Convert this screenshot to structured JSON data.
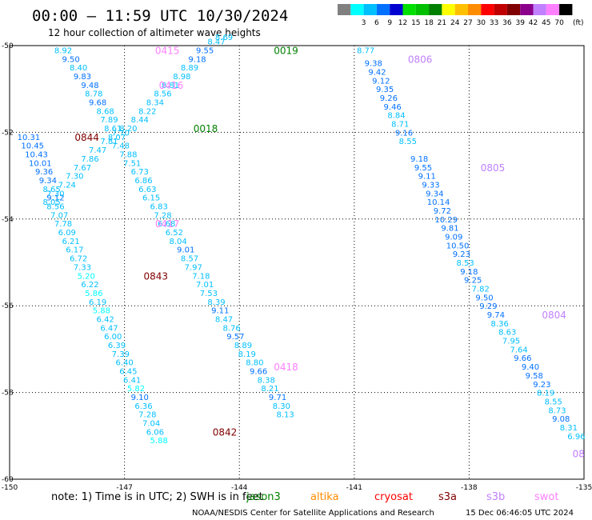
{
  "header": {
    "title": "00:00 — 11:59 UTC 10/30/2024",
    "subtitle": "12 hour collection of altimeter wave heights"
  },
  "legend": {
    "unit": "(ft)",
    "bins": [
      {
        "label": "",
        "color": "#808080"
      },
      {
        "label": "3",
        "color": "#00ffff"
      },
      {
        "label": "6",
        "color": "#00bfff"
      },
      {
        "label": "9",
        "color": "#0070ff"
      },
      {
        "label": "12",
        "color": "#0000d0"
      },
      {
        "label": "15",
        "color": "#00e000"
      },
      {
        "label": "18",
        "color": "#00c000"
      },
      {
        "label": "21",
        "color": "#008000"
      },
      {
        "label": "24",
        "color": "#ffff00"
      },
      {
        "label": "27",
        "color": "#ffc000"
      },
      {
        "label": "30",
        "color": "#ff8c00"
      },
      {
        "label": "33",
        "color": "#ff0000"
      },
      {
        "label": "36",
        "color": "#c00000"
      },
      {
        "label": "39",
        "color": "#800000"
      },
      {
        "label": "42",
        "color": "#8b008b"
      },
      {
        "label": "45",
        "color": "#c080ff"
      },
      {
        "label": "70",
        "color": "#ff80ff"
      },
      {
        "label": "",
        "color": "#000000"
      }
    ]
  },
  "axes": {
    "lon_labels": [
      "-150",
      "-147",
      "-144",
      "-141",
      "-138",
      "-135"
    ],
    "lat_labels": [
      "-50",
      "-52",
      "-54",
      "-56",
      "-58",
      "-60"
    ]
  },
  "time_labels": [
    {
      "text": "0415",
      "lon": -146.2,
      "lat": -50.1,
      "color": "#ff80ff"
    },
    {
      "text": "0416",
      "lon": -146.1,
      "lat": -50.9,
      "color": "#ff80ff"
    },
    {
      "text": "0844",
      "lon": -148.3,
      "lat": -52.1,
      "color": "#800000"
    },
    {
      "text": "0843",
      "lon": -146.5,
      "lat": -55.3,
      "color": "#800000"
    },
    {
      "text": "0417",
      "lon": -146.2,
      "lat": -54.1,
      "color": "#ff80ff"
    },
    {
      "text": "0418",
      "lon": -143.1,
      "lat": -57.4,
      "color": "#ff80ff"
    },
    {
      "text": "0842",
      "lon": -144.7,
      "lat": -58.9,
      "color": "#800000"
    },
    {
      "text": "0019",
      "lon": -143.1,
      "lat": -50.1,
      "color": "#008000"
    },
    {
      "text": "0018",
      "lon": -145.2,
      "lat": -51.9,
      "color": "#008000"
    },
    {
      "text": "0806",
      "lon": -139.6,
      "lat": -50.3,
      "color": "#c080ff"
    },
    {
      "text": "0805",
      "lon": -137.7,
      "lat": -52.8,
      "color": "#c080ff"
    },
    {
      "text": "0804",
      "lon": -136.1,
      "lat": -56.2,
      "color": "#c080ff"
    },
    {
      "text": "08",
      "lon": -135.3,
      "lat": -59.4,
      "color": "#c080ff"
    }
  ],
  "swh_tracks": [
    {
      "name": "0415-0417",
      "points": [
        {
          "lon": -148.6,
          "lat": -50.1,
          "v": "8.92"
        },
        {
          "lon": -148.4,
          "lat": -50.3,
          "v": "9.50"
        },
        {
          "lon": -148.2,
          "lat": -50.5,
          "v": "8.40"
        },
        {
          "lon": -148.1,
          "lat": -50.7,
          "v": "9.83"
        },
        {
          "lon": -147.9,
          "lat": -50.9,
          "v": "9.48"
        },
        {
          "lon": -147.8,
          "lat": -51.1,
          "v": "8.78"
        },
        {
          "lon": -147.7,
          "lat": -51.3,
          "v": "9.68"
        },
        {
          "lon": -147.5,
          "lat": -51.5,
          "v": "8.68"
        },
        {
          "lon": -147.4,
          "lat": -51.7,
          "v": "7.89"
        },
        {
          "lon": -147.3,
          "lat": -51.9,
          "v": "8.61"
        },
        {
          "lon": -147.2,
          "lat": -52.1,
          "v": "8.07"
        },
        {
          "lon": -147.1,
          "lat": -52.3,
          "v": "7.48"
        },
        {
          "lon": -146.9,
          "lat": -52.5,
          "v": "7.88"
        },
        {
          "lon": -146.8,
          "lat": -52.7,
          "v": "7.51"
        },
        {
          "lon": -146.6,
          "lat": -52.9,
          "v": "6.73"
        },
        {
          "lon": -146.5,
          "lat": -53.1,
          "v": "6.86"
        },
        {
          "lon": -146.4,
          "lat": -53.3,
          "v": "6.63"
        },
        {
          "lon": -146.3,
          "lat": -53.5,
          "v": "6.15"
        }
      ]
    },
    {
      "name": "0417-0418",
      "points": [
        {
          "lon": -146.1,
          "lat": -53.7,
          "v": "6.83"
        },
        {
          "lon": -146.0,
          "lat": -53.9,
          "v": "7.28"
        },
        {
          "lon": -145.9,
          "lat": -54.1,
          "v": "6.68"
        },
        {
          "lon": -145.7,
          "lat": -54.3,
          "v": "6.52"
        },
        {
          "lon": -145.6,
          "lat": -54.5,
          "v": "8.04"
        },
        {
          "lon": -145.4,
          "lat": -54.7,
          "v": "9.01"
        },
        {
          "lon": -145.3,
          "lat": -54.9,
          "v": "8.57"
        },
        {
          "lon": -145.2,
          "lat": -55.1,
          "v": "7.97"
        },
        {
          "lon": -145.0,
          "lat": -55.3,
          "v": "7.18"
        },
        {
          "lon": -144.9,
          "lat": -55.5,
          "v": "7.01"
        },
        {
          "lon": -144.8,
          "lat": -55.7,
          "v": "7.53"
        },
        {
          "lon": -144.6,
          "lat": -55.9,
          "v": "8.39"
        },
        {
          "lon": -144.5,
          "lat": -56.1,
          "v": "9.11"
        },
        {
          "lon": -144.4,
          "lat": -56.3,
          "v": "8.47"
        },
        {
          "lon": -144.2,
          "lat": -56.5,
          "v": "8.76"
        },
        {
          "lon": -144.1,
          "lat": -56.7,
          "v": "9.57"
        },
        {
          "lon": -143.9,
          "lat": -56.9,
          "v": "8.89"
        },
        {
          "lon": -143.8,
          "lat": -57.1,
          "v": "8.19"
        },
        {
          "lon": -143.6,
          "lat": -57.3,
          "v": "8.80"
        },
        {
          "lon": -143.5,
          "lat": -57.5,
          "v": "9.66"
        },
        {
          "lon": -143.3,
          "lat": -57.7,
          "v": "8.38"
        },
        {
          "lon": -143.2,
          "lat": -57.9,
          "v": "8.21"
        },
        {
          "lon": -143.0,
          "lat": -58.1,
          "v": "9.71"
        },
        {
          "lon": -142.9,
          "lat": -58.3,
          "v": "8.30"
        },
        {
          "lon": -142.8,
          "lat": -58.5,
          "v": "8.13"
        }
      ]
    },
    {
      "name": "0844-0842",
      "points": [
        {
          "lon": -149.5,
          "lat": -52.1,
          "v": "10.31"
        },
        {
          "lon": -149.4,
          "lat": -52.3,
          "v": "10.45"
        },
        {
          "lon": -149.3,
          "lat": -52.5,
          "v": "10.43"
        },
        {
          "lon": -149.2,
          "lat": -52.7,
          "v": "10.01"
        },
        {
          "lon": -149.1,
          "lat": -52.9,
          "v": "9.36"
        },
        {
          "lon": -149.0,
          "lat": -53.1,
          "v": "9.34"
        },
        {
          "lon": -148.9,
          "lat": -53.3,
          "v": "8.65"
        },
        {
          "lon": -148.8,
          "lat": -53.5,
          "v": "9.12"
        },
        {
          "lon": -148.8,
          "lat": -53.7,
          "v": "8.56"
        },
        {
          "lon": -148.7,
          "lat": -53.9,
          "v": "7.07"
        },
        {
          "lon": -148.6,
          "lat": -54.1,
          "v": "7.78"
        },
        {
          "lon": -148.5,
          "lat": -54.3,
          "v": "6.09"
        },
        {
          "lon": -148.4,
          "lat": -54.5,
          "v": "6.21"
        },
        {
          "lon": -148.3,
          "lat": -54.7,
          "v": "6.17"
        },
        {
          "lon": -148.2,
          "lat": -54.9,
          "v": "6.72"
        },
        {
          "lon": -148.1,
          "lat": -55.1,
          "v": "7.33"
        },
        {
          "lon": -148.0,
          "lat": -55.3,
          "v": "5.20"
        },
        {
          "lon": -147.9,
          "lat": -55.5,
          "v": "6.22"
        },
        {
          "lon": -147.8,
          "lat": -55.7,
          "v": "5.86"
        },
        {
          "lon": -147.7,
          "lat": -55.9,
          "v": "6.19"
        },
        {
          "lon": -147.6,
          "lat": -56.1,
          "v": "5.88"
        },
        {
          "lon": -147.5,
          "lat": -56.3,
          "v": "6.42"
        },
        {
          "lon": -147.4,
          "lat": -56.5,
          "v": "6.47"
        },
        {
          "lon": -147.3,
          "lat": -56.7,
          "v": "6.00"
        },
        {
          "lon": -147.2,
          "lat": -56.9,
          "v": "6.39"
        },
        {
          "lon": -147.1,
          "lat": -57.1,
          "v": "7.39"
        },
        {
          "lon": -147.0,
          "lat": -57.3,
          "v": "6.40"
        },
        {
          "lon": -146.9,
          "lat": -57.5,
          "v": "6.45"
        },
        {
          "lon": -146.8,
          "lat": -57.7,
          "v": "6.41"
        },
        {
          "lon": -146.7,
          "lat": -57.9,
          "v": "5.82"
        },
        {
          "lon": -146.6,
          "lat": -58.1,
          "v": "9.10"
        },
        {
          "lon": -146.5,
          "lat": -58.3,
          "v": "6.36"
        },
        {
          "lon": -146.4,
          "lat": -58.5,
          "v": "7.28"
        },
        {
          "lon": -146.3,
          "lat": -58.7,
          "v": "7.04"
        },
        {
          "lon": -146.2,
          "lat": -58.9,
          "v": "6.06"
        },
        {
          "lon": -146.1,
          "lat": -59.1,
          "v": "5.88"
        }
      ]
    },
    {
      "name": "0018-0019",
      "points": [
        {
          "lon": -148.9,
          "lat": -53.6,
          "v": "8.05"
        },
        {
          "lon": -148.8,
          "lat": -53.4,
          "v": "7.30"
        },
        {
          "lon": -148.5,
          "lat": -53.2,
          "v": "7.24"
        },
        {
          "lon": -148.3,
          "lat": -53.0,
          "v": "7.30"
        },
        {
          "lon": -148.1,
          "lat": -52.8,
          "v": "7.67"
        },
        {
          "lon": -147.9,
          "lat": -52.6,
          "v": "7.86"
        },
        {
          "lon": -147.7,
          "lat": -52.4,
          "v": "7.47"
        },
        {
          "lon": -147.4,
          "lat": -52.2,
          "v": "7.81"
        },
        {
          "lon": -147.1,
          "lat": -52.0,
          "v": "7.70"
        },
        {
          "lon": -146.9,
          "lat": -51.9,
          "v": "8.20"
        },
        {
          "lon": -146.6,
          "lat": -51.7,
          "v": "8.44"
        },
        {
          "lon": -146.4,
          "lat": -51.5,
          "v": "8.22"
        },
        {
          "lon": -146.2,
          "lat": -51.3,
          "v": "8.34"
        },
        {
          "lon": -146.0,
          "lat": -51.1,
          "v": "8.56"
        },
        {
          "lon": -145.8,
          "lat": -50.9,
          "v": "8.81"
        },
        {
          "lon": -145.5,
          "lat": -50.7,
          "v": "8.98"
        },
        {
          "lon": -145.3,
          "lat": -50.5,
          "v": "8.89"
        },
        {
          "lon": -145.1,
          "lat": -50.3,
          "v": "9.18"
        },
        {
          "lon": -144.9,
          "lat": -50.1,
          "v": "9.55"
        },
        {
          "lon": -144.6,
          "lat": -49.9,
          "v": "8.47"
        },
        {
          "lon": -144.4,
          "lat": -49.8,
          "v": "8.69"
        }
      ]
    },
    {
      "name": "0806-0804",
      "points": [
        {
          "lon": -140.7,
          "lat": -50.1,
          "v": "8.77"
        },
        {
          "lon": -140.5,
          "lat": -50.4,
          "v": "9.38"
        },
        {
          "lon": -140.4,
          "lat": -50.6,
          "v": "9.42"
        },
        {
          "lon": -140.3,
          "lat": -50.8,
          "v": "9.12"
        },
        {
          "lon": -140.2,
          "lat": -51.0,
          "v": "9.35"
        },
        {
          "lon": -140.1,
          "lat": -51.2,
          "v": "9.26"
        },
        {
          "lon": -140.0,
          "lat": -51.4,
          "v": "9.46"
        },
        {
          "lon": -139.9,
          "lat": -51.6,
          "v": "8.84"
        },
        {
          "lon": -139.8,
          "lat": -51.8,
          "v": "8.71"
        },
        {
          "lon": -139.7,
          "lat": -52.0,
          "v": "9.16"
        },
        {
          "lon": -139.6,
          "lat": -52.2,
          "v": "8.55"
        },
        {
          "lon": -139.3,
          "lat": -52.6,
          "v": "9.18"
        },
        {
          "lon": -139.2,
          "lat": -52.8,
          "v": "9.55"
        },
        {
          "lon": -139.1,
          "lat": -53.0,
          "v": "9.11"
        },
        {
          "lon": -139.0,
          "lat": -53.2,
          "v": "9.33"
        },
        {
          "lon": -138.9,
          "lat": -53.4,
          "v": "9.34"
        },
        {
          "lon": -138.8,
          "lat": -53.6,
          "v": "10.14"
        },
        {
          "lon": -138.7,
          "lat": -53.8,
          "v": "9.72"
        },
        {
          "lon": -138.6,
          "lat": -54.0,
          "v": "10.29"
        },
        {
          "lon": -138.5,
          "lat": -54.2,
          "v": "9.81"
        },
        {
          "lon": -138.4,
          "lat": -54.4,
          "v": "9.09"
        },
        {
          "lon": -138.3,
          "lat": -54.6,
          "v": "10.50"
        },
        {
          "lon": -138.2,
          "lat": -54.8,
          "v": "9.23"
        },
        {
          "lon": -138.1,
          "lat": -55.0,
          "v": "8.53"
        },
        {
          "lon": -138.0,
          "lat": -55.2,
          "v": "9.18"
        },
        {
          "lon": -137.9,
          "lat": -55.4,
          "v": "9.25"
        },
        {
          "lon": -137.7,
          "lat": -55.6,
          "v": "7.82"
        },
        {
          "lon": -137.6,
          "lat": -55.8,
          "v": "9.50"
        },
        {
          "lon": -137.5,
          "lat": -56.0,
          "v": "9.29"
        },
        {
          "lon": -137.3,
          "lat": -56.2,
          "v": "9.74"
        },
        {
          "lon": -137.2,
          "lat": -56.4,
          "v": "8.36"
        },
        {
          "lon": -137.0,
          "lat": -56.6,
          "v": "8.63"
        },
        {
          "lon": -136.9,
          "lat": -56.8,
          "v": "7.95"
        },
        {
          "lon": -136.7,
          "lat": -57.0,
          "v": "7.64"
        },
        {
          "lon": -136.6,
          "lat": -57.2,
          "v": "9.66"
        },
        {
          "lon": -136.4,
          "lat": -57.4,
          "v": "9.40"
        },
        {
          "lon": -136.3,
          "lat": -57.6,
          "v": "9.58"
        },
        {
          "lon": -136.1,
          "lat": -57.8,
          "v": "9.23"
        },
        {
          "lon": -136.0,
          "lat": -58.0,
          "v": "8.19"
        },
        {
          "lon": -135.8,
          "lat": -58.2,
          "v": "8.55"
        },
        {
          "lon": -135.7,
          "lat": -58.4,
          "v": "8.73"
        },
        {
          "lon": -135.6,
          "lat": -58.6,
          "v": "9.08"
        },
        {
          "lon": -135.4,
          "lat": -58.8,
          "v": "8.31"
        },
        {
          "lon": -135.2,
          "lat": -59.0,
          "v": "6.96"
        }
      ]
    }
  ],
  "footer": {
    "note": "note: 1) Time is in UTC; 2) SWH is in feet",
    "missions": [
      {
        "label": "jason3",
        "color": "#008000"
      },
      {
        "label": "altika",
        "color": "#ff8c00"
      },
      {
        "label": "cryosat",
        "color": "#ff0000"
      },
      {
        "label": "s3a",
        "color": "#800000"
      },
      {
        "label": "s3b",
        "color": "#c080ff"
      },
      {
        "label": "swot",
        "color": "#ff80ff"
      }
    ],
    "credit": "NOAA/NESDIS Center for Satellite Applications and Research",
    "generated": "15 Dec 06:46:05 UTC 2024"
  }
}
